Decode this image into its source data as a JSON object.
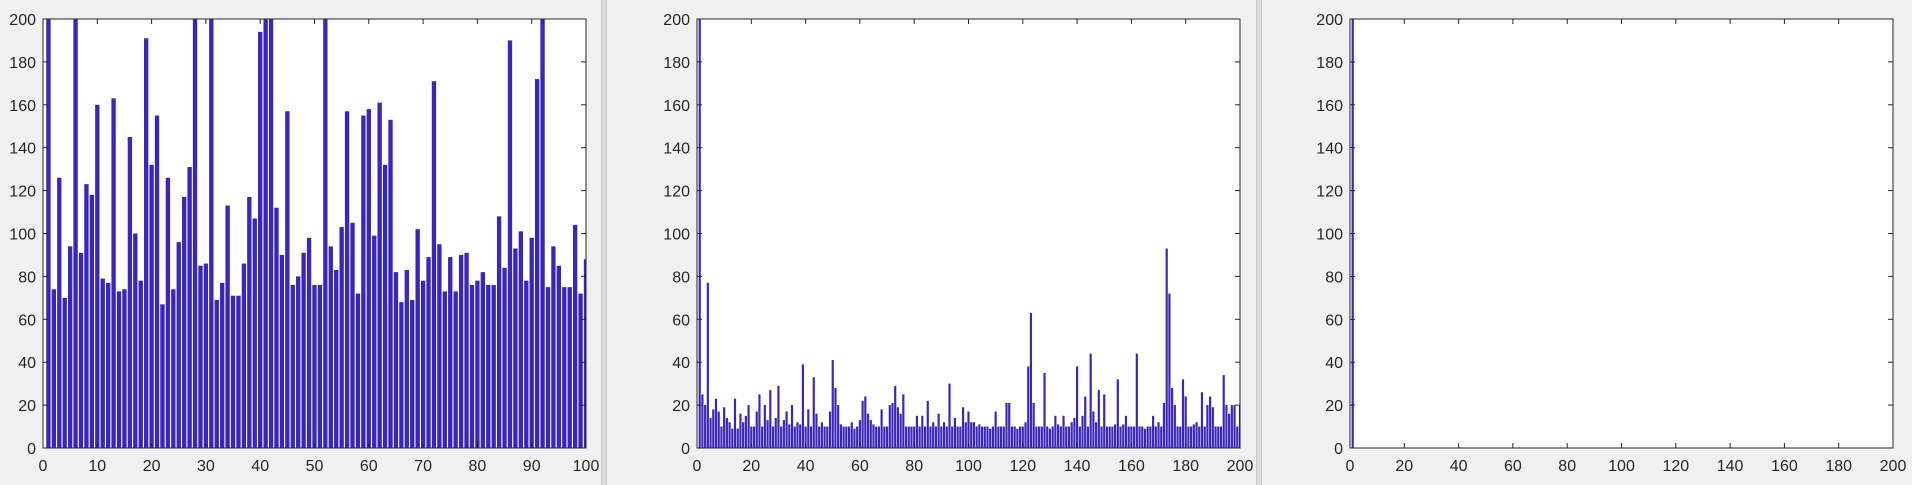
{
  "colors": {
    "bar": "#3a26b8",
    "axis": "#262626",
    "plot_background": "#ffffff",
    "figure_background": "#f0f0f0"
  },
  "chart_data": [
    {
      "type": "bar",
      "title": "",
      "xlabel": "",
      "ylabel": "",
      "xlim": [
        0,
        100
      ],
      "ylim": [
        0,
        200
      ],
      "x_ticks": [
        0,
        10,
        20,
        30,
        40,
        50,
        60,
        70,
        80,
        90,
        100
      ],
      "y_ticks": [
        0,
        20,
        40,
        60,
        80,
        100,
        120,
        140,
        160,
        180,
        200
      ],
      "x_tick_labels": [
        "0",
        "10",
        "20",
        "30",
        "40",
        "50",
        "60",
        "70",
        "80",
        "90",
        "100"
      ],
      "y_tick_labels": [
        "0",
        "20",
        "40",
        "60",
        "80",
        "100",
        "120",
        "140",
        "160",
        "180",
        "200"
      ],
      "grid": false,
      "x_start": 1,
      "values": [
        200,
        74,
        126,
        70,
        94,
        200,
        91,
        123,
        118,
        160,
        79,
        77,
        163,
        73,
        74,
        145,
        100,
        78,
        191,
        132,
        155,
        67,
        126,
        74,
        96,
        117,
        131,
        200,
        85,
        86,
        200,
        69,
        77,
        113,
        71,
        71,
        86,
        117,
        107,
        194,
        200,
        200,
        112,
        90,
        157,
        76,
        80,
        91,
        98,
        76,
        76,
        200,
        94,
        83,
        103,
        157,
        105,
        72,
        155,
        158,
        99,
        161,
        132,
        153,
        82,
        68,
        83,
        69,
        102,
        78,
        89,
        171,
        95,
        73,
        89,
        73,
        90,
        91,
        76,
        78,
        82,
        76,
        76,
        108,
        84,
        190,
        93,
        101,
        78,
        98,
        172,
        200,
        75,
        94,
        85,
        75,
        75,
        104,
        72,
        88
      ]
    },
    {
      "type": "bar",
      "title": "",
      "xlabel": "",
      "ylabel": "",
      "xlim": [
        0,
        200
      ],
      "ylim": [
        0,
        200
      ],
      "x_ticks": [
        0,
        20,
        40,
        60,
        80,
        100,
        120,
        140,
        160,
        180,
        200
      ],
      "y_ticks": [
        0,
        20,
        40,
        60,
        80,
        100,
        120,
        140,
        160,
        180,
        200
      ],
      "x_tick_labels": [
        "0",
        "20",
        "40",
        "60",
        "80",
        "100",
        "120",
        "140",
        "160",
        "180",
        "200"
      ],
      "y_tick_labels": [
        "0",
        "20",
        "40",
        "60",
        "80",
        "100",
        "120",
        "140",
        "160",
        "180",
        "200"
      ],
      "grid": false,
      "x_start": 1,
      "values": [
        200,
        25,
        20,
        77,
        14,
        18,
        23,
        17,
        10,
        19,
        14,
        12,
        9,
        23,
        9,
        16,
        12,
        15,
        20,
        10,
        10,
        17,
        25,
        10,
        20,
        13,
        27,
        10,
        14,
        29,
        10,
        13,
        17,
        11,
        20,
        10,
        12,
        11,
        39,
        10,
        18,
        10,
        33,
        16,
        10,
        12,
        10,
        10,
        17,
        41,
        28,
        20,
        11,
        10,
        10,
        10,
        12,
        9,
        10,
        13,
        22,
        24,
        16,
        13,
        11,
        10,
        10,
        18,
        10,
        10,
        20,
        21,
        29,
        19,
        16,
        25,
        10,
        10,
        10,
        10,
        15,
        10,
        15,
        10,
        22,
        10,
        12,
        10,
        16,
        10,
        12,
        10,
        30,
        10,
        14,
        10,
        10,
        19,
        12,
        17,
        12,
        12,
        10,
        11,
        10,
        10,
        10,
        9,
        10,
        17,
        10,
        10,
        10,
        21,
        21,
        10,
        10,
        9,
        10,
        10,
        12,
        38,
        63,
        21,
        10,
        10,
        10,
        35,
        10,
        9,
        10,
        15,
        11,
        10,
        15,
        10,
        10,
        12,
        14,
        38,
        10,
        15,
        24,
        10,
        44,
        17,
        12,
        27,
        10,
        25,
        10,
        10,
        10,
        11,
        32,
        10,
        11,
        15,
        10,
        10,
        10,
        44,
        10,
        10,
        9,
        10,
        10,
        15,
        10,
        12,
        10,
        21,
        93,
        72,
        28,
        20,
        10,
        10,
        32,
        24,
        10,
        10,
        11,
        12,
        10,
        26,
        10,
        20,
        24,
        19,
        10,
        10,
        10,
        34,
        20,
        16,
        20,
        20,
        10,
        20
      ]
    },
    {
      "type": "bar",
      "title": "",
      "xlabel": "",
      "ylabel": "",
      "xlim": [
        0,
        200
      ],
      "ylim": [
        0,
        200
      ],
      "x_ticks": [
        0,
        20,
        40,
        60,
        80,
        100,
        120,
        140,
        160,
        180,
        200
      ],
      "y_ticks": [
        0,
        20,
        40,
        60,
        80,
        100,
        120,
        140,
        160,
        180,
        200
      ],
      "x_tick_labels": [
        "0",
        "20",
        "40",
        "60",
        "80",
        "100",
        "120",
        "140",
        "160",
        "180",
        "200"
      ],
      "y_tick_labels": [
        "0",
        "20",
        "40",
        "60",
        "80",
        "100",
        "120",
        "140",
        "160",
        "180",
        "200"
      ],
      "grid": false,
      "x_start": 1,
      "values": [
        200
      ]
    }
  ]
}
